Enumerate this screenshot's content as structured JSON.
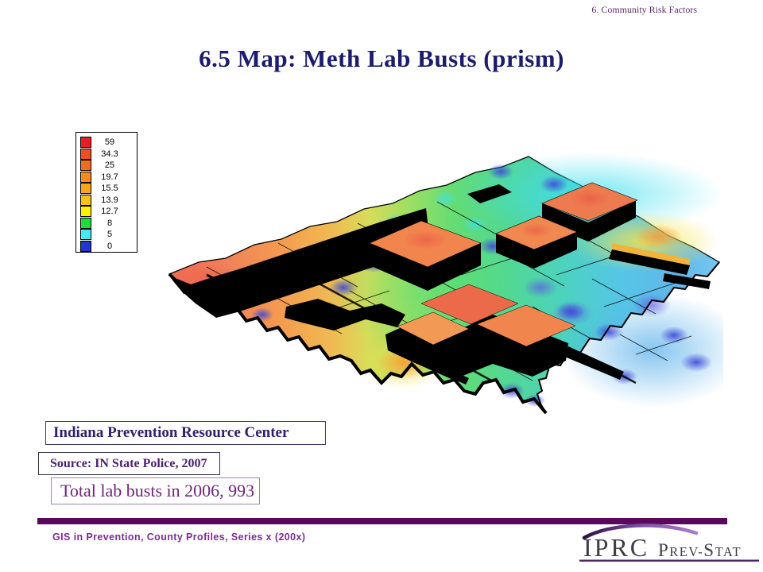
{
  "header": {
    "section_ref": "6.  Community Risk Factors"
  },
  "title": "6.5 Map:  Meth Lab Busts (prism)",
  "legend": {
    "items": [
      {
        "value": "59",
        "color": "#EC1C24"
      },
      {
        "value": "34.3",
        "color": "#F04E23"
      },
      {
        "value": "25",
        "color": "#F26B22"
      },
      {
        "value": "19.7",
        "color": "#F68C1E"
      },
      {
        "value": "15.5",
        "color": "#F9A51B"
      },
      {
        "value": "13.9",
        "color": "#FCC211"
      },
      {
        "value": "12.7",
        "color": "#FFF200"
      },
      {
        "value": "8",
        "color": "#1EDC3E"
      },
      {
        "value": "5",
        "color": "#46E9F3"
      },
      {
        "value": "0",
        "color": "#2036CF"
      }
    ]
  },
  "map": {
    "kind": "3D prism choropleth of Indiana counties, meth lab busts"
  },
  "info_boxes": {
    "org": "Indiana Prevention Resource Center",
    "source": "Source: IN State Police, 2007",
    "total": "Total lab busts in 2006, 993"
  },
  "footer": {
    "series": "GIS in Prevention, County Profiles, Series x (200x)",
    "logo": {
      "iprc": "IPRC",
      "p": "P",
      "rev": "REV",
      "dash": "-",
      "s": "S",
      "tat": "TAT"
    }
  },
  "colors": {
    "title_navy": "#1C1C6E",
    "accent_bar_purple": "#58095B",
    "footer_text_purple": "#7B2E91",
    "header_ref_purple": "#5E2A70",
    "logo_gray": "#3D3D46"
  }
}
